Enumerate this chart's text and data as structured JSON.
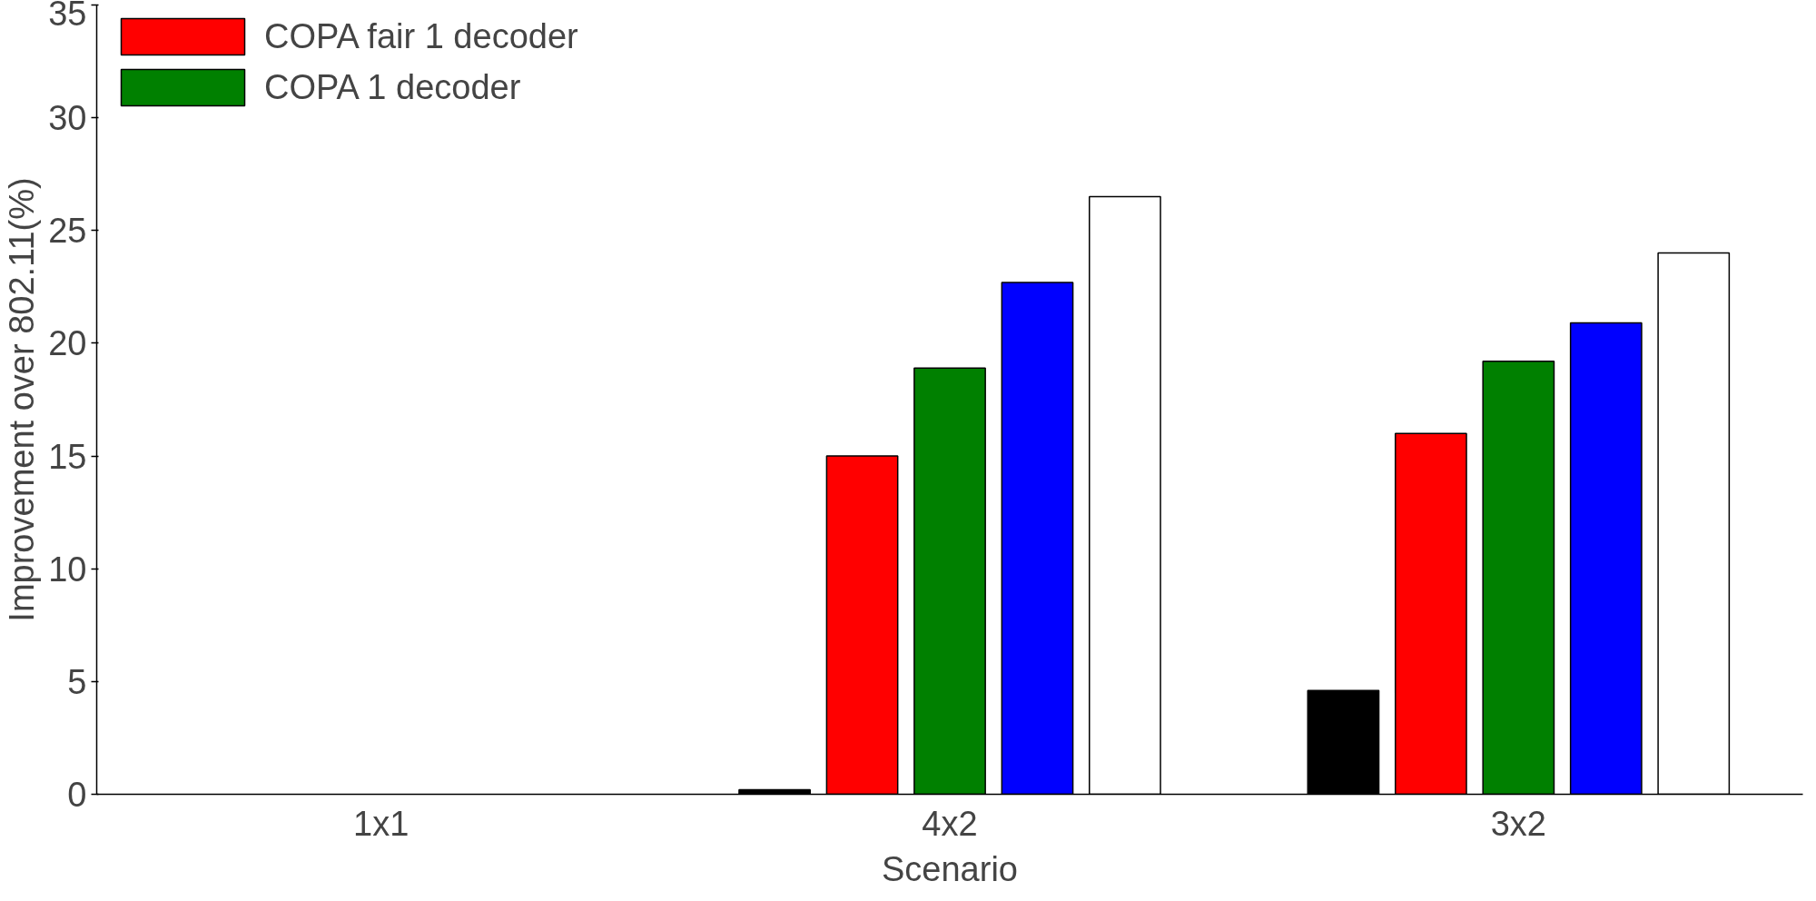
{
  "chart_data": {
    "type": "bar",
    "xlabel": "Scenario",
    "ylabel": "Improvement over 802.11(%)",
    "categories": [
      "1x1",
      "4x2",
      "3x2"
    ],
    "series": [
      {
        "color": "#000000",
        "values": [
          null,
          0.2,
          4.6
        ]
      },
      {
        "name": "COPA fair 1 decoder",
        "color": "#ff0000",
        "values": [
          null,
          15.0,
          16.0
        ]
      },
      {
        "name": "COPA 1 decoder",
        "color": "#008000",
        "values": [
          null,
          18.9,
          19.2
        ]
      },
      {
        "color": "#0000ff",
        "values": [
          null,
          22.7,
          20.9
        ]
      },
      {
        "color": "#ffffff",
        "values": [
          null,
          26.5,
          24.0
        ]
      }
    ],
    "ylim": [
      0,
      35
    ],
    "yticks": [
      0,
      5,
      10,
      15,
      20,
      25,
      30,
      35
    ],
    "grid": false,
    "legend": "top left"
  }
}
